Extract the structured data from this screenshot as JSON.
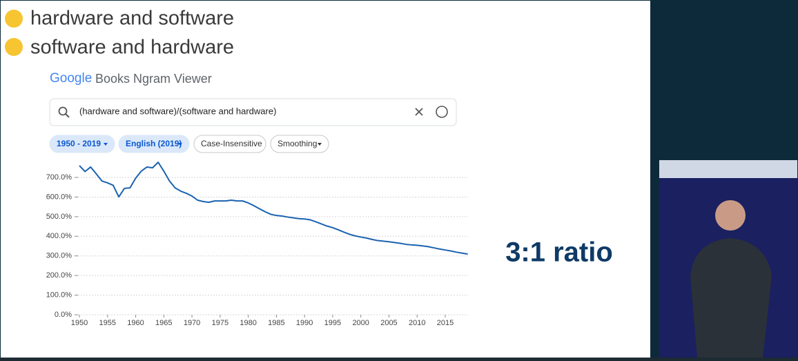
{
  "slide": {
    "lines": [
      "hardware and software",
      "software and hardware"
    ],
    "callout": "3:1 ratio"
  },
  "ngram": {
    "logo": "Google",
    "app_name": "Books Ngram Viewer",
    "query": "(hardware and software)/(software and hardware)",
    "chips": [
      "1950 - 2019",
      "English (2019)",
      "Case-Insensitive",
      "Smoothing"
    ]
  },
  "chart_data": {
    "type": "line",
    "color": "#1a62b0",
    "grid": true,
    "x": [
      1950,
      1951,
      1952,
      1953,
      1954,
      1955,
      1956,
      1957,
      1958,
      1959,
      1960,
      1961,
      1962,
      1963,
      1964,
      1965,
      1966,
      1967,
      1968,
      1969,
      1970,
      1971,
      1972,
      1973,
      1974,
      1975,
      1976,
      1977,
      1978,
      1979,
      1980,
      1981,
      1982,
      1983,
      1984,
      1985,
      1986,
      1987,
      1988,
      1989,
      1990,
      1991,
      1992,
      1993,
      1994,
      1995,
      1996,
      1997,
      1998,
      1999,
      2000,
      2001,
      2002,
      2003,
      2004,
      2005,
      2006,
      2007,
      2008,
      2009,
      2010,
      2011,
      2012,
      2013,
      2014,
      2015,
      2016,
      2017,
      2018,
      2019
    ],
    "values": [
      760,
      730,
      753,
      718,
      682,
      672,
      660,
      601,
      644,
      647,
      696,
      732,
      753,
      749,
      777,
      732,
      682,
      647,
      630,
      619,
      605,
      584,
      577,
      573,
      580,
      580,
      580,
      584,
      580,
      580,
      570,
      556,
      540,
      525,
      512,
      506,
      503,
      498,
      494,
      490,
      488,
      484,
      474,
      463,
      452,
      444,
      433,
      421,
      410,
      402,
      396,
      391,
      384,
      378,
      375,
      372,
      368,
      364,
      359,
      356,
      354,
      351,
      347,
      341,
      335,
      330,
      325,
      319,
      314,
      309
    ],
    "xlim": [
      1950,
      2019
    ],
    "xticks": [
      1950,
      1955,
      1960,
      1965,
      1970,
      1975,
      1980,
      1985,
      1990,
      1995,
      2000,
      2005,
      2010,
      2015
    ],
    "ylim": [
      0,
      800
    ],
    "yticks": [
      {
        "value": 0,
        "label": "0.0%"
      },
      {
        "value": 100,
        "label": "100.0%"
      },
      {
        "value": 200,
        "label": "200.0%"
      },
      {
        "value": 300,
        "label": "300.0%"
      },
      {
        "value": 400,
        "label": "400.0%"
      },
      {
        "value": 500,
        "label": "500.0%"
      },
      {
        "value": 600,
        "label": "600.0%"
      },
      {
        "value": 700,
        "label": "700.0%"
      }
    ]
  }
}
